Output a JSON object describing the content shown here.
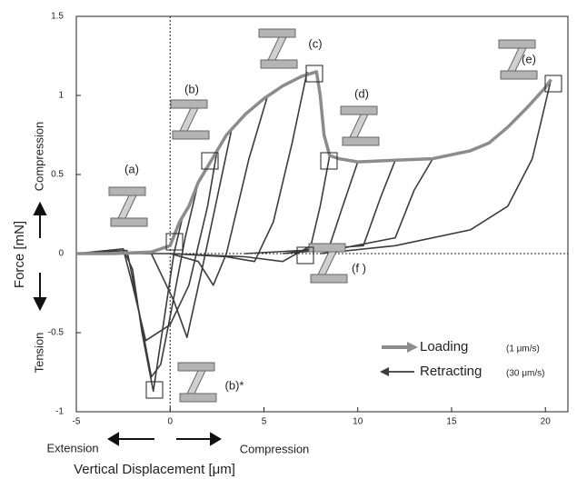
{
  "chart_data": {
    "type": "line",
    "x_label": "Vertical Displacement [μm]",
    "y_label": "Force [mN]",
    "direction_labels": {
      "y_positive": "Compression",
      "y_negative": "Tension",
      "x_negative": "Extension",
      "x_positive": "Compression"
    },
    "xlim": [
      -5,
      21.2
    ],
    "ylim": [
      -1,
      1.5
    ],
    "xticks": [
      -5,
      0,
      5,
      10,
      15,
      20
    ],
    "yticks": [
      -1,
      -0.5,
      0,
      0.5,
      1,
      1.5
    ],
    "annotations": [
      "(a)",
      "(b)",
      "(c)",
      "(d)",
      "(e)",
      "(f )",
      "(b)*"
    ],
    "series": [
      {
        "name": "Loading",
        "rate": "(1 μm/s)",
        "color": "#8c8c8c",
        "x": [
          -5,
          -3,
          -1,
          0,
          0.5,
          1,
          1.5,
          2,
          2.5,
          3,
          4,
          5,
          6,
          7,
          7.8,
          8,
          8.2,
          8.5,
          9,
          10,
          12,
          14,
          16,
          17,
          18,
          19,
          20,
          20.3
        ],
        "values": [
          0,
          0,
          0.01,
          0.05,
          0.2,
          0.3,
          0.45,
          0.55,
          0.65,
          0.75,
          0.88,
          0.98,
          1.06,
          1.12,
          1.15,
          1.0,
          0.75,
          0.62,
          0.6,
          0.58,
          0.59,
          0.6,
          0.65,
          0.7,
          0.8,
          0.92,
          1.05,
          1.1
        ]
      },
      {
        "name": "Retracting",
        "rate": "(30 μm/s)",
        "color": "#3c3c3c",
        "x": [
          0.7,
          0.2,
          -0.3,
          -0.9,
          -1.5,
          -2,
          -2.5,
          -5,
          null,
          1.5,
          0.8,
          0,
          -0.5,
          -1,
          -1.6,
          -2.3,
          -5,
          null,
          2.5,
          2,
          1,
          0,
          -1.3,
          -2,
          -2.5,
          -5,
          null,
          3.3,
          2.5,
          1.7,
          0.9,
          0.2,
          -1,
          -5,
          null,
          5.2,
          4.2,
          3,
          2.3,
          1.5,
          0,
          -5,
          null,
          7.3,
          6.5,
          5.5,
          4.5,
          3,
          0,
          null,
          8.5,
          8,
          7.5,
          6,
          4,
          0,
          null,
          10,
          9.2,
          8.5,
          7,
          4,
          null,
          12,
          11.2,
          10.3,
          8,
          6,
          null,
          14,
          13,
          12,
          9,
          6,
          null,
          20.3,
          19.3,
          18,
          16,
          12,
          8
        ],
        "values": [
          0.25,
          0,
          -0.4,
          -0.87,
          -0.5,
          -0.1,
          0.03,
          0,
          null,
          0.45,
          0.1,
          -0.4,
          -0.7,
          -0.78,
          -0.4,
          0.02,
          0,
          null,
          0.65,
          0.3,
          -0.2,
          -0.45,
          -0.55,
          -0.2,
          0.03,
          0,
          null,
          0.8,
          0.35,
          -0.1,
          -0.53,
          -0.3,
          0,
          0,
          null,
          1.0,
          0.6,
          0,
          -0.2,
          -0.05,
          0,
          0,
          null,
          1.15,
          0.7,
          0.2,
          -0.05,
          -0.02,
          0,
          null,
          0.62,
          0.3,
          0.05,
          -0.05,
          -0.02,
          0,
          null,
          0.58,
          0.3,
          0.05,
          0.02,
          0,
          null,
          0.59,
          0.35,
          0.05,
          0.03,
          0,
          null,
          0.6,
          0.4,
          0.1,
          0.03,
          0,
          null,
          1.1,
          0.6,
          0.3,
          0.15,
          0.05,
          0
        ]
      }
    ]
  }
}
